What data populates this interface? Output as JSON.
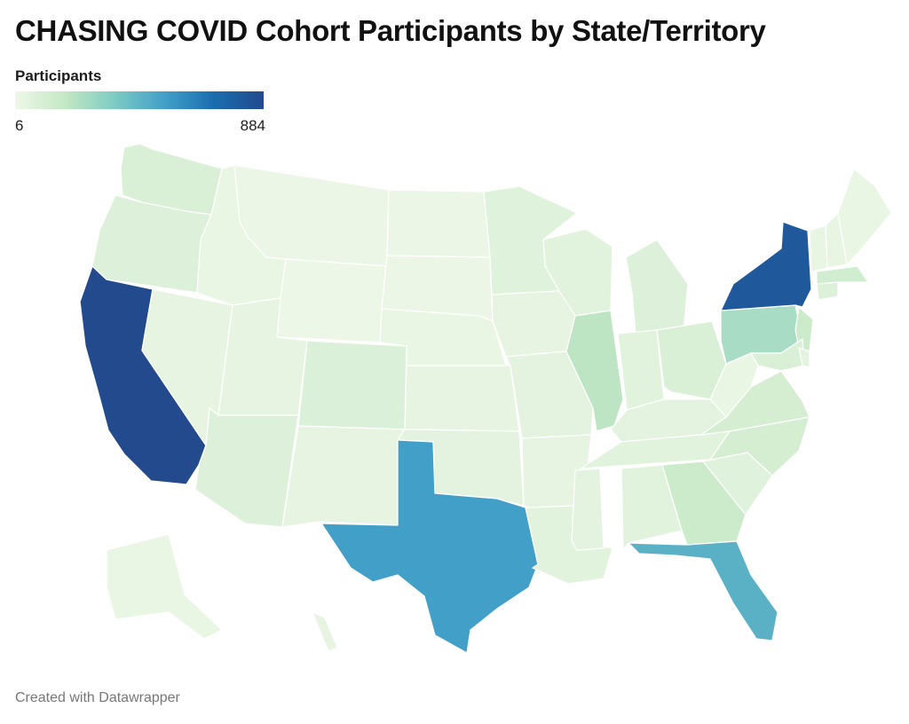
{
  "title": "CHASING COVID Cohort Participants by State/Territory",
  "legend": {
    "title": "Participants",
    "min_label": "6",
    "max_label": "884",
    "min": 6,
    "max": 884,
    "colors": [
      "#eef7e8",
      "#c4e8c4",
      "#7ecbc4",
      "#42a0c8",
      "#1a6db0",
      "#234a8d"
    ]
  },
  "credit": "Created with Datawrapper",
  "map_data": {
    "type": "choropleth",
    "variable": "Participants",
    "scale": [
      6,
      884
    ],
    "regions": [
      {
        "id": "WA",
        "level": 0.1
      },
      {
        "id": "OR",
        "level": 0.08
      },
      {
        "id": "CA",
        "level": 1.0
      },
      {
        "id": "NV",
        "level": 0.04
      },
      {
        "id": "ID",
        "level": 0.02
      },
      {
        "id": "MT",
        "level": 0.01
      },
      {
        "id": "WY",
        "level": 0.005
      },
      {
        "id": "UT",
        "level": 0.04
      },
      {
        "id": "AZ",
        "level": 0.08
      },
      {
        "id": "CO",
        "level": 0.09
      },
      {
        "id": "NM",
        "level": 0.04
      },
      {
        "id": "ND",
        "level": 0.01
      },
      {
        "id": "SD",
        "level": 0.01
      },
      {
        "id": "NE",
        "level": 0.02
      },
      {
        "id": "KS",
        "level": 0.04
      },
      {
        "id": "OK",
        "level": 0.05
      },
      {
        "id": "TX",
        "level": 0.6
      },
      {
        "id": "MN",
        "level": 0.07
      },
      {
        "id": "IA",
        "level": 0.04
      },
      {
        "id": "MO",
        "level": 0.05
      },
      {
        "id": "AR",
        "level": 0.04
      },
      {
        "id": "LA",
        "level": 0.06
      },
      {
        "id": "WI",
        "level": 0.06
      },
      {
        "id": "IL",
        "level": 0.22
      },
      {
        "id": "MI",
        "level": 0.08
      },
      {
        "id": "IN",
        "level": 0.06
      },
      {
        "id": "OH",
        "level": 0.1
      },
      {
        "id": "KY",
        "level": 0.05
      },
      {
        "id": "TN",
        "level": 0.06
      },
      {
        "id": "MS",
        "level": 0.05
      },
      {
        "id": "AL",
        "level": 0.06
      },
      {
        "id": "GA",
        "level": 0.16
      },
      {
        "id": "FL",
        "level": 0.52
      },
      {
        "id": "SC",
        "level": 0.07
      },
      {
        "id": "NC",
        "level": 0.12
      },
      {
        "id": "VA",
        "level": 0.12
      },
      {
        "id": "WV",
        "level": 0.02
      },
      {
        "id": "PA",
        "level": 0.28
      },
      {
        "id": "NY",
        "level": 0.92
      },
      {
        "id": "NJ",
        "level": 0.16
      },
      {
        "id": "MD",
        "level": 0.1
      },
      {
        "id": "DE",
        "level": 0.05
      },
      {
        "id": "CT",
        "level": 0.08
      },
      {
        "id": "MA",
        "level": 0.14
      },
      {
        "id": "VT",
        "level": 0.03
      },
      {
        "id": "NH",
        "level": 0.03
      },
      {
        "id": "ME",
        "level": 0.02
      },
      {
        "id": "AK",
        "level": 0.02
      },
      {
        "id": "HI",
        "level": 0.04
      }
    ]
  }
}
